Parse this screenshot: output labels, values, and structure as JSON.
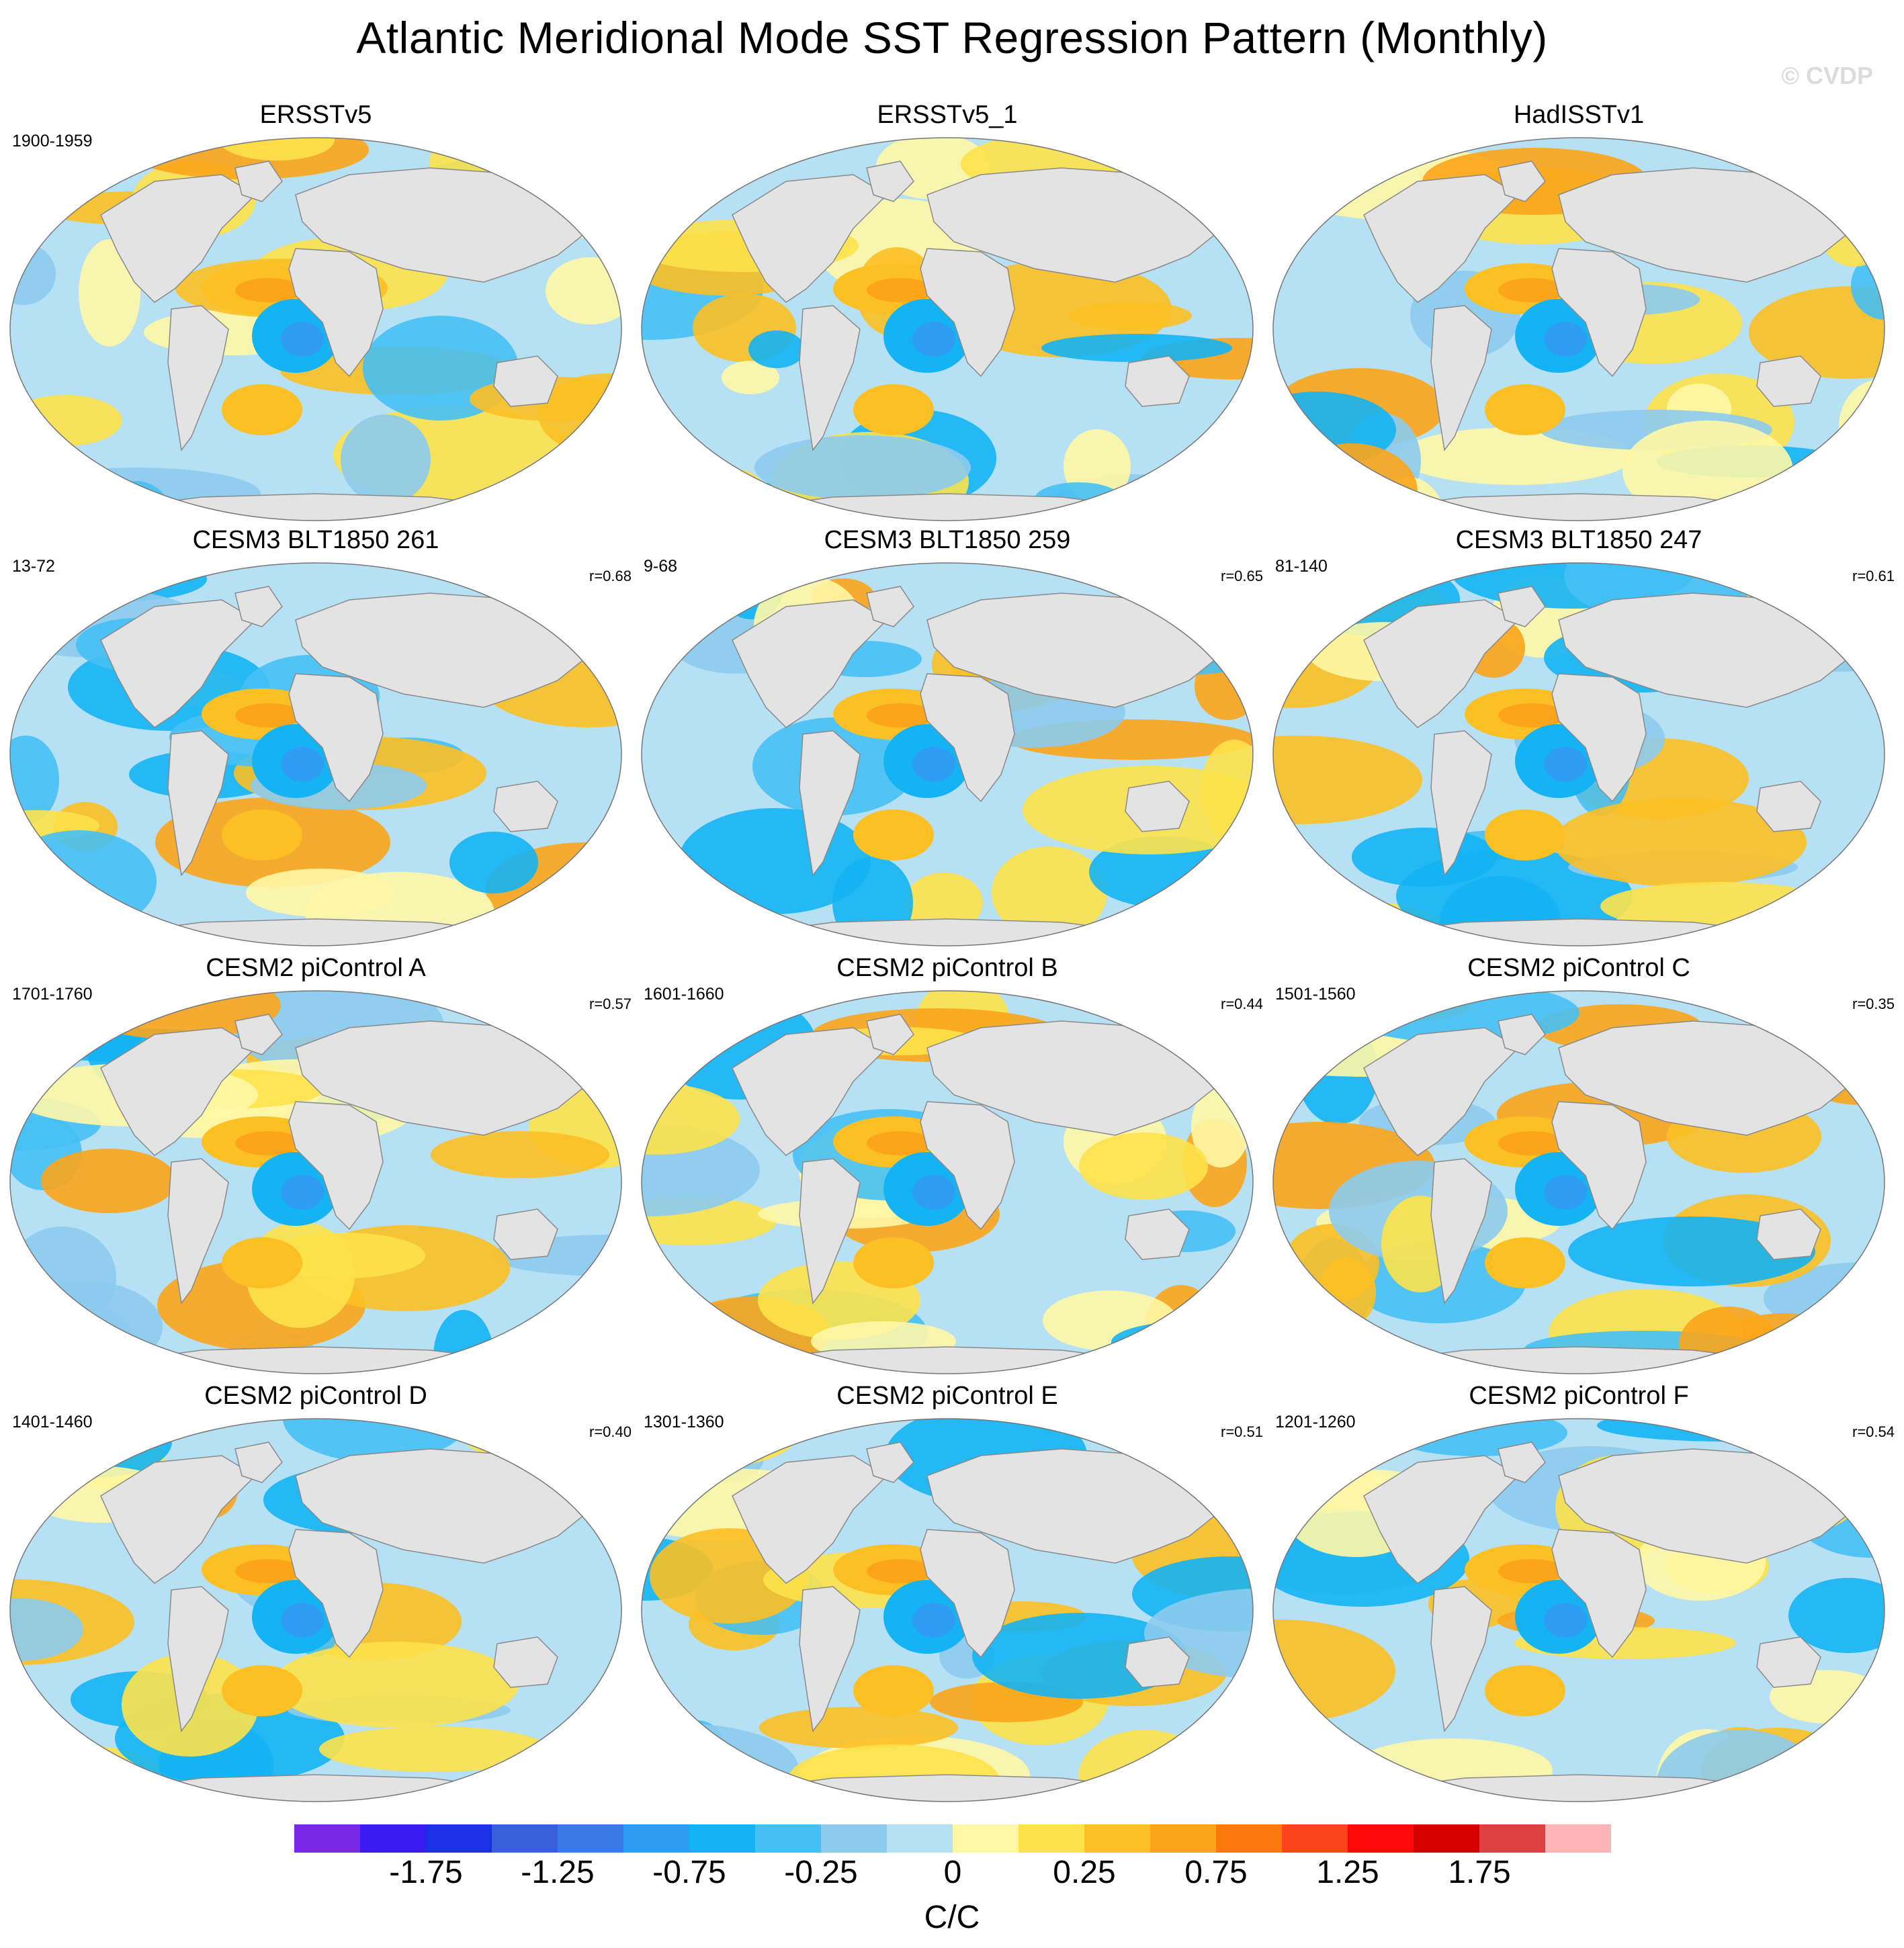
{
  "title": "Atlantic Meridional Mode SST Regression Pattern (Monthly)",
  "copyright": "© CVDP",
  "panels": [
    {
      "title": "ERSSTv5",
      "period": "1900-1959",
      "corr": ""
    },
    {
      "title": "ERSSTv5_1",
      "period": "",
      "corr": ""
    },
    {
      "title": "HadISSTv1",
      "period": "",
      "corr": ""
    },
    {
      "title": "CESM3 BLT1850 261",
      "period": "13-72",
      "corr": "r=0.68"
    },
    {
      "title": "CESM3 BLT1850 259",
      "period": "9-68",
      "corr": "r=0.65"
    },
    {
      "title": "CESM3 BLT1850 247",
      "period": "81-140",
      "corr": "r=0.61"
    },
    {
      "title": "CESM2 piControl A",
      "period": "1701-1760",
      "corr": "r=0.57"
    },
    {
      "title": "CESM2 piControl B",
      "period": "1601-1660",
      "corr": "r=0.44"
    },
    {
      "title": "CESM2 piControl C",
      "period": "1501-1560",
      "corr": "r=0.35"
    },
    {
      "title": "CESM2 piControl D",
      "period": "1401-1460",
      "corr": "r=0.40"
    },
    {
      "title": "CESM2 piControl E",
      "period": "1301-1360",
      "corr": "r=0.51"
    },
    {
      "title": "CESM2 piControl F",
      "period": "1201-1260",
      "corr": "r=0.54"
    }
  ],
  "colorbar": {
    "colors": [
      "#7a28e8",
      "#3a1cf2",
      "#1c30e8",
      "#3a5fdc",
      "#3a7ae6",
      "#2e9cf2",
      "#14b4f4",
      "#46c0f4",
      "#8ccbee",
      "#b6e0f4",
      "#fff7a6",
      "#fde24a",
      "#fcc024",
      "#fca51a",
      "#fc7a0c",
      "#fc441c",
      "#fc0808",
      "#d40000",
      "#dc4040",
      "#fcb4b4"
    ],
    "labels": [
      "-1.75",
      "-1.25",
      "-0.75",
      "-0.25",
      "0",
      "0.25",
      "0.75",
      "1.25",
      "1.75"
    ],
    "units": "C/C"
  },
  "palette": {
    "land": "#e3e3e3",
    "coast": "#8a8a8a",
    "ocean_warm": "#fde24a",
    "ocean_cool": "#b6e0f4"
  }
}
